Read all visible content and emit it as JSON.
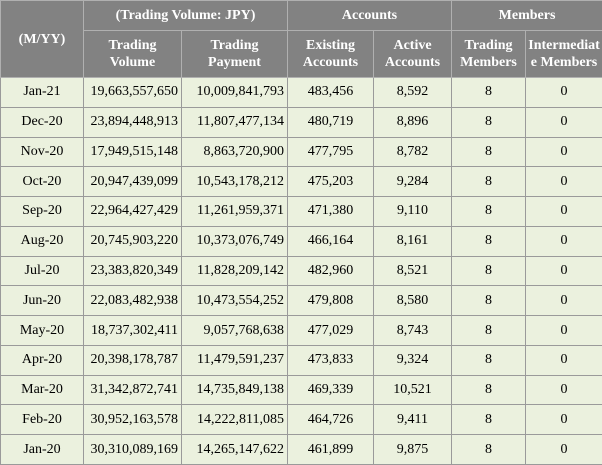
{
  "table": {
    "period_header": "(M/YY)",
    "groups": [
      "(Trading Volume: JPY)",
      "Accounts",
      "Members"
    ],
    "columns": [
      "Trading Volume",
      "Trading Payment",
      "Existing Accounts",
      "Active Accounts",
      "Trading Members",
      "Intermediate Members"
    ],
    "rows": [
      [
        "Jan-21",
        "19,663,557,650",
        "10,009,841,793",
        "483,456",
        "8,592",
        "8",
        "0"
      ],
      [
        "Dec-20",
        "23,894,448,913",
        "11,807,477,134",
        "480,719",
        "8,896",
        "8",
        "0"
      ],
      [
        "Nov-20",
        "17,949,515,148",
        "8,863,720,900",
        "477,795",
        "8,782",
        "8",
        "0"
      ],
      [
        "Oct-20",
        "20,947,439,099",
        "10,543,178,212",
        "475,203",
        "9,284",
        "8",
        "0"
      ],
      [
        "Sep-20",
        "22,964,427,429",
        "11,261,959,371",
        "471,380",
        "9,110",
        "8",
        "0"
      ],
      [
        "Aug-20",
        "20,745,903,220",
        "10,373,076,749",
        "466,164",
        "8,161",
        "8",
        "0"
      ],
      [
        "Jul-20",
        "23,383,820,349",
        "11,828,209,142",
        "482,960",
        "8,521",
        "8",
        "0"
      ],
      [
        "Jun-20",
        "22,083,482,938",
        "10,473,554,252",
        "479,808",
        "8,580",
        "8",
        "0"
      ],
      [
        "May-20",
        "18,737,302,411",
        "9,057,768,638",
        "477,029",
        "8,743",
        "8",
        "0"
      ],
      [
        "Apr-20",
        "20,398,178,787",
        "11,479,591,237",
        "473,833",
        "9,324",
        "8",
        "0"
      ],
      [
        "Mar-20",
        "31,342,872,741",
        "14,735,849,138",
        "469,339",
        "10,521",
        "8",
        "0"
      ],
      [
        "Feb-20",
        "30,952,163,578",
        "14,222,811,085",
        "464,726",
        "9,411",
        "8",
        "0"
      ],
      [
        "Jan-20",
        "30,310,089,169",
        "14,265,147,622",
        "461,899",
        "9,875",
        "8",
        "0"
      ]
    ]
  }
}
